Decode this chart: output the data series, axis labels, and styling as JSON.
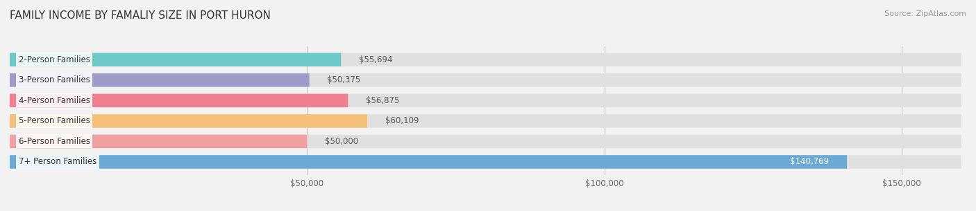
{
  "title": "FAMILY INCOME BY FAMALIY SIZE IN PORT HURON",
  "source": "Source: ZipAtlas.com",
  "categories": [
    "2-Person Families",
    "3-Person Families",
    "4-Person Families",
    "5-Person Families",
    "6-Person Families",
    "7+ Person Families"
  ],
  "values": [
    55694,
    50375,
    56875,
    60109,
    50000,
    140769
  ],
  "bar_colors": [
    "#6dc8c8",
    "#a09aca",
    "#f08090",
    "#f5c07a",
    "#f0a0a0",
    "#6aaad4"
  ],
  "value_labels": [
    "$55,694",
    "$50,375",
    "$56,875",
    "$60,109",
    "$50,000",
    "$140,769"
  ],
  "xmax": 160000,
  "xticks": [
    50000,
    100000,
    150000
  ],
  "xtick_labels": [
    "$50,000",
    "$100,000",
    "$150,000"
  ],
  "bg_color": "#f2f2f2",
  "bar_bg_color": "#e0e0e0",
  "title_fontsize": 11,
  "label_fontsize": 8.5,
  "value_fontsize": 8.5,
  "source_fontsize": 8
}
